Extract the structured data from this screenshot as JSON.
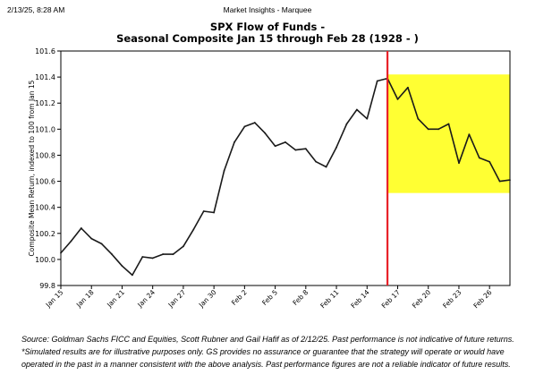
{
  "header": {
    "timestamp": "2/13/25, 8:28 AM",
    "page_title": "Market Insights - Marquee"
  },
  "chart_data": {
    "type": "line",
    "title": "SPX Flow of Funds -",
    "subtitle": "Seasonal Composite Jan 15 through Feb 28 (1928 - )",
    "ylabel": "Composite Mean Return, indexed to 100 from Jan 15",
    "xlabel": "",
    "ylim": [
      99.8,
      101.6
    ],
    "yticks": [
      "99.8",
      "100.0",
      "100.2",
      "100.4",
      "100.6",
      "100.8",
      "101.0",
      "101.2",
      "101.4",
      "101.6"
    ],
    "x_tick_labels": [
      "Jan 15",
      "Jan 18",
      "Jan 21",
      "Jan 24",
      "Jan 27",
      "Jan 30",
      "Feb 2",
      "Feb 5",
      "Feb 8",
      "Feb 11",
      "Feb 14",
      "Feb 17",
      "Feb 20",
      "Feb 23",
      "Feb 26"
    ],
    "x_tick_days": [
      0,
      3,
      6,
      9,
      12,
      15,
      18,
      21,
      24,
      27,
      30,
      33,
      36,
      39,
      42
    ],
    "x_range_days": [
      0,
      44
    ],
    "series": [
      {
        "color": "#1a1a1a",
        "x_days": [
          0,
          1,
          2,
          3,
          4,
          5,
          6,
          7,
          8,
          9,
          10,
          11,
          12,
          13,
          14,
          15,
          16,
          17,
          18,
          19,
          20,
          21,
          22,
          23,
          24,
          25,
          26,
          27,
          28,
          29,
          30,
          31,
          32,
          33,
          34,
          35,
          36,
          37,
          38,
          39,
          40,
          41,
          42,
          43,
          44
        ],
        "values": [
          100.05,
          100.14,
          100.24,
          100.16,
          100.12,
          100.04,
          99.95,
          99.88,
          100.02,
          100.01,
          100.04,
          100.04,
          100.1,
          100.23,
          100.37,
          100.36,
          100.68,
          100.9,
          101.02,
          101.05,
          100.97,
          100.87,
          100.9,
          100.84,
          100.85,
          100.75,
          100.71,
          100.86,
          101.04,
          101.15,
          101.08,
          101.37,
          101.39,
          101.23,
          101.32,
          101.08,
          101.0,
          101.0,
          101.04,
          100.74,
          100.96,
          100.78,
          100.75,
          100.6,
          100.61
        ]
      }
    ],
    "vertical_marker": {
      "x_day": 32,
      "color": "#e8222a"
    },
    "highlight": {
      "x_range_days": [
        32,
        44
      ],
      "y_range": [
        100.51,
        101.42
      ],
      "color": "#ffff33"
    },
    "grid": false,
    "legend": "none"
  },
  "source_note": "Source: Goldman Sachs FICC and Equities, Scott Rubner and Gail Hafif as of 2/12/25. Past performance is not indicative of future returns. *Simulated results are for illustrative purposes only. GS provides no assurance or guarantee that the strategy will operate or would have operated in the past in a manner consistent with the above analysis. Past performance figures are not a reliable indicator of future results."
}
